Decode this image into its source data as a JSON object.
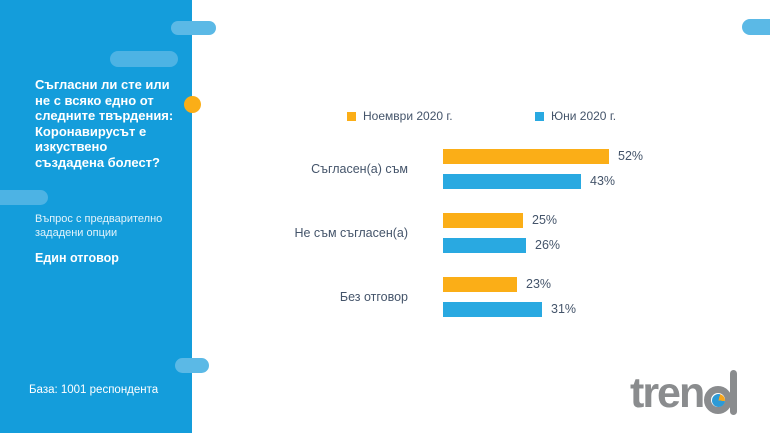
{
  "sidebar": {
    "title": "Съгласни ли сте или\nне с всяко едно от\nследните твърдения:\nКоронавирусът е\nизкуствено\nсъздадена болест?",
    "subtitle": "Въпрос с предварително\nзададени опции",
    "answer_type": "Един отговор",
    "base": "База: 1001 респондента"
  },
  "logo": {
    "text": "trend"
  },
  "colors": {
    "sidebar_blue": "#149DDB",
    "decor_blue": "#5BB9E6",
    "accent_orange": "#FBAE17",
    "bar_blue": "#29A9E1",
    "text_slate": "#44546A"
  },
  "chart_data": {
    "type": "bar",
    "orientation": "horizontal",
    "title": "",
    "categories": [
      "Съгласен(а) съм",
      "Не съм съгласен(а)",
      "Без отговор"
    ],
    "series": [
      {
        "name": "Ноември 2020 г.",
        "color": "#FBAE17",
        "values": [
          52,
          25,
          23
        ]
      },
      {
        "name": "Юни 2020 г.",
        "color": "#29A9E1",
        "values": [
          43,
          26,
          31
        ]
      }
    ],
    "unit": "%",
    "xlim": [
      0,
      100
    ],
    "grid": false,
    "value_labels": true,
    "legend_position": "top"
  }
}
